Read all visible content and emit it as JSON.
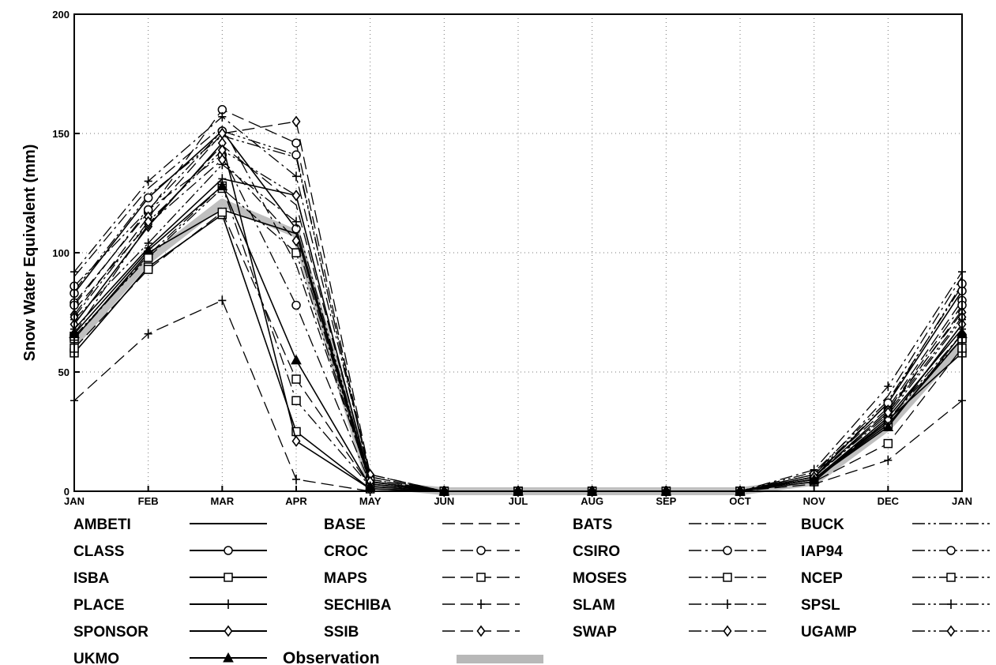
{
  "chart_data": {
    "type": "line",
    "title": "",
    "xlabel": "",
    "ylabel": "Snow Water Equivalent (mm)",
    "categories": [
      "JAN",
      "FEB",
      "MAR",
      "APR",
      "MAY",
      "JUN",
      "JUL",
      "AUG",
      "SEP",
      "OCT",
      "NOV",
      "DEC",
      "JAN"
    ],
    "ylim": [
      0,
      200
    ],
    "yticks": [
      "0",
      "50",
      "100",
      "150",
      "200"
    ],
    "grid": true,
    "legend": "bottom",
    "series": [
      {
        "name": "AMBETI",
        "line": "solid",
        "marker": "none",
        "values": [
          64,
          100,
          118,
          108,
          3,
          0,
          0,
          0,
          0,
          0,
          5,
          28,
          64
        ]
      },
      {
        "name": "BASE",
        "line": "dashed",
        "marker": "none",
        "values": [
          76,
          112,
          145,
          120,
          5,
          0,
          0,
          0,
          0,
          0,
          6,
          33,
          76
        ]
      },
      {
        "name": "BATS",
        "line": "dashdot",
        "marker": "none",
        "values": [
          90,
          127,
          153,
          95,
          4,
          0,
          0,
          0,
          0,
          0,
          7,
          40,
          90
        ]
      },
      {
        "name": "BUCK",
        "line": "dashdotdot",
        "marker": "none",
        "values": [
          84,
          124,
          149,
          140,
          6,
          0,
          0,
          0,
          0,
          0,
          8,
          38,
          86
        ]
      },
      {
        "name": "CLASS",
        "line": "solid",
        "marker": "circle",
        "values": [
          83,
          123,
          151,
          110,
          4,
          0,
          0,
          0,
          0,
          0,
          6,
          37,
          84
        ]
      },
      {
        "name": "CROC",
        "line": "dashed",
        "marker": "circle",
        "values": [
          79,
          117,
          160,
          146,
          6,
          0,
          0,
          0,
          0,
          0,
          7,
          35,
          80
        ]
      },
      {
        "name": "CSIRO",
        "line": "dashdot",
        "marker": "circle",
        "values": [
          78,
          118,
          141,
          78,
          3,
          0,
          0,
          0,
          0,
          0,
          6,
          34,
          78
        ]
      },
      {
        "name": "IAP94",
        "line": "dashdotdot",
        "marker": "circle",
        "values": [
          86,
          118,
          151,
          141,
          5,
          0,
          0,
          0,
          0,
          0,
          7,
          37,
          87
        ]
      },
      {
        "name": "ISBA",
        "line": "solid",
        "marker": "square",
        "values": [
          58,
          94,
          116,
          25,
          1,
          0,
          0,
          0,
          0,
          0,
          4,
          30,
          58
        ]
      },
      {
        "name": "MAPS",
        "line": "dashed",
        "marker": "square",
        "values": [
          60,
          93,
          117,
          47,
          2,
          0,
          0,
          0,
          0,
          0,
          4,
          20,
          60
        ]
      },
      {
        "name": "MOSES",
        "line": "dashdot",
        "marker": "square",
        "values": [
          64,
          99,
          128,
          38,
          2,
          0,
          0,
          0,
          0,
          0,
          5,
          28,
          64
        ]
      },
      {
        "name": "NCEP",
        "line": "dashdotdot",
        "marker": "square",
        "values": [
          65,
          98,
          127,
          100,
          3,
          0,
          0,
          0,
          0,
          0,
          5,
          30,
          64
        ]
      },
      {
        "name": "PLACE",
        "line": "solid",
        "marker": "plus",
        "values": [
          68,
          102,
          131,
          124,
          4,
          0,
          0,
          0,
          0,
          0,
          5,
          31,
          68
        ]
      },
      {
        "name": "SECHIBA",
        "line": "dashed",
        "marker": "plus",
        "values": [
          38,
          66,
          80,
          5,
          0,
          0,
          0,
          0,
          0,
          0,
          3,
          13,
          38
        ]
      },
      {
        "name": "SLAM",
        "line": "dashdot",
        "marker": "plus",
        "values": [
          92,
          130,
          157,
          132,
          7,
          0,
          0,
          0,
          0,
          0,
          9,
          44,
          92
        ]
      },
      {
        "name": "SPSL",
        "line": "dashdotdot",
        "marker": "plus",
        "values": [
          72,
          104,
          137,
          113,
          4,
          0,
          0,
          0,
          0,
          0,
          6,
          32,
          72
        ]
      },
      {
        "name": "SPONSOR",
        "line": "solid",
        "marker": "diamond",
        "values": [
          70,
          111,
          146,
          21,
          1,
          0,
          0,
          0,
          0,
          0,
          5,
          29,
          70
        ]
      },
      {
        "name": "SSIB",
        "line": "dashed",
        "marker": "diamond",
        "values": [
          74,
          115,
          150,
          155,
          7,
          0,
          0,
          0,
          0,
          0,
          6,
          34,
          75
        ]
      },
      {
        "name": "SWAP",
        "line": "dashdot",
        "marker": "diamond",
        "values": [
          66,
          112,
          139,
          105,
          3,
          0,
          0,
          0,
          0,
          0,
          5,
          30,
          66
        ]
      },
      {
        "name": "UGAMP",
        "line": "dashdotdot",
        "marker": "diamond",
        "values": [
          73,
          113,
          143,
          124,
          4,
          0,
          0,
          0,
          0,
          0,
          6,
          33,
          73
        ]
      },
      {
        "name": "UKMO",
        "line": "solid",
        "marker": "triangle",
        "values": [
          66,
          101,
          128,
          55,
          2,
          0,
          0,
          0,
          0,
          0,
          5,
          27,
          66
        ]
      },
      {
        "name": "Observation",
        "line": "shaded",
        "marker": "none",
        "values": [
          62,
          97,
          121,
          108,
          3,
          0,
          0,
          0,
          0,
          0,
          4,
          27,
          62
        ]
      }
    ]
  }
}
